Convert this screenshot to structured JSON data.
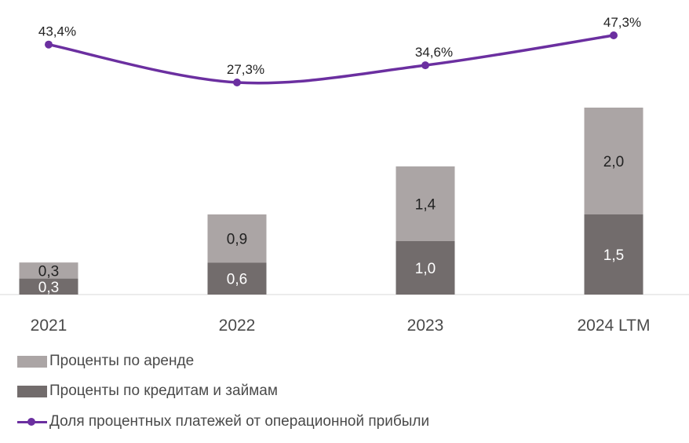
{
  "colors": {
    "lease": "#aba5a5",
    "loans": "#726c6c",
    "line": "#6b2fa0",
    "axis": "#d9d9d9",
    "text": "#4a4a4a"
  },
  "chart_data": {
    "type": "bar",
    "stacked": true,
    "categories": [
      "2021",
      "2022",
      "2023",
      "2024 LTM"
    ],
    "series": [
      {
        "name": "Проценты по кредитам и займам",
        "values": [
          0.3,
          0.6,
          1.0,
          1.5
        ],
        "labels": [
          "0,3",
          "0,6",
          "1,0",
          "1,5"
        ]
      },
      {
        "name": "Проценты по аренде",
        "values": [
          0.3,
          0.9,
          1.4,
          2.0
        ],
        "labels": [
          "0,3",
          "0,9",
          "1,4",
          "2,0"
        ]
      }
    ],
    "line_series": {
      "name": "Доля процентных платежей от операционной прибыли",
      "values": [
        43.4,
        27.3,
        34.6,
        47.3
      ],
      "labels": [
        "43,4%",
        "27,3%",
        "34,6%",
        "47,3%"
      ]
    },
    "legend_position": "bottom-left",
    "grid": false
  },
  "legend": [
    {
      "label": "Проценты по аренде",
      "kind": "bar",
      "color": "#aba5a5"
    },
    {
      "label": "Проценты по кредитам и займам",
      "kind": "bar",
      "color": "#726c6c"
    },
    {
      "label": "Доля процентных платежей от операционной прибыли",
      "kind": "line",
      "color": "#6b2fa0"
    }
  ]
}
